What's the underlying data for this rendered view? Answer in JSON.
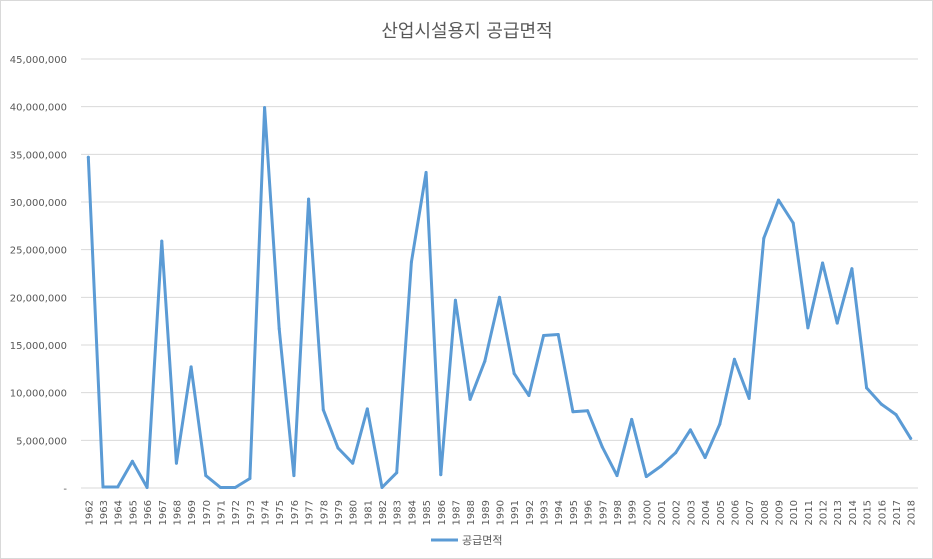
{
  "chart_data": {
    "type": "line",
    "title": "산업시설용지 공급면적",
    "xlabel": "",
    "ylabel": "",
    "ylim": [
      0,
      45000000
    ],
    "yticks": [
      0,
      5000000,
      10000000,
      15000000,
      20000000,
      25000000,
      30000000,
      35000000,
      40000000,
      45000000
    ],
    "ytick_labels": [
      "-",
      "5,000,000",
      "10,000,000",
      "15,000,000",
      "20,000,000",
      "25,000,000",
      "30,000,000",
      "35,000,000",
      "40,000,000",
      "45,000,000"
    ],
    "grid": true,
    "legend_position": "bottom",
    "line_color": "#5b9bd5",
    "categories": [
      "1962",
      "1963",
      "1964",
      "1965",
      "1966",
      "1967",
      "1968",
      "1969",
      "1970",
      "1971",
      "1972",
      "1973",
      "1974",
      "1975",
      "1976",
      "1977",
      "1978",
      "1979",
      "1980",
      "1981",
      "1982",
      "1983",
      "1984",
      "1985",
      "1986",
      "1987",
      "1988",
      "1989",
      "1990",
      "1991",
      "1992",
      "1993",
      "1994",
      "1995",
      "1996",
      "1997",
      "1998",
      "1999",
      "2000",
      "2001",
      "2002",
      "2003",
      "2004",
      "2005",
      "2006",
      "2007",
      "2008",
      "2009",
      "2010",
      "2011",
      "2012",
      "2013",
      "2014",
      "2015",
      "2016",
      "2017",
      "2018"
    ],
    "series": [
      {
        "name": "공급면적",
        "values": [
          34700000,
          100000,
          100000,
          2800000,
          50000,
          25900000,
          2600000,
          12700000,
          1300000,
          50000,
          50000,
          1000000,
          39900000,
          16700000,
          1300000,
          30300000,
          8200000,
          4200000,
          2600000,
          8300000,
          50000,
          1600000,
          23700000,
          33100000,
          1400000,
          19700000,
          9300000,
          13300000,
          20000000,
          12000000,
          9700000,
          16000000,
          16100000,
          8000000,
          8100000,
          4300000,
          1300000,
          7200000,
          1200000,
          2300000,
          3700000,
          6100000,
          3200000,
          6700000,
          13500000,
          9400000,
          26200000,
          30200000,
          27800000,
          16800000,
          23600000,
          17300000,
          23000000,
          10500000,
          8800000,
          7700000,
          5200000
        ]
      }
    ]
  }
}
